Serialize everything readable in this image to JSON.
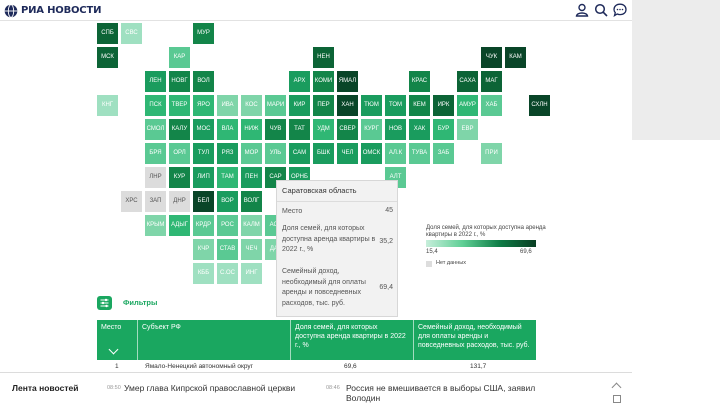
{
  "header": {
    "logo_text": "РИА НОВОСТИ",
    "icons": [
      "user-icon",
      "search-icon",
      "chat-icon"
    ]
  },
  "map": {
    "colors": {
      "c1": "#c4ecd8",
      "c2": "#9fe0c1",
      "c3": "#7fd5a9",
      "c4": "#5ac993",
      "c5": "#2fb774",
      "c6": "#1a9c5e",
      "c7": "#138549",
      "c8": "#0c6436",
      "c9": "#094528",
      "nodata": "#dcdcdc"
    },
    "tiles": [
      {
        "label": "СПБ",
        "c": "c8"
      },
      {
        "label": "СВС",
        "c": "c2"
      },
      {
        "label": "МУР",
        "c": "c7"
      },
      {
        "label": "МСК",
        "c": "c8"
      },
      {
        "label": "КАР",
        "c": "c4"
      },
      {
        "label": "НЕН",
        "c": "c8"
      },
      {
        "label": "ЧУК",
        "c": "c9"
      },
      {
        "label": "КАМ",
        "c": "c9"
      },
      {
        "label": "ЛЕН",
        "c": "c6"
      },
      {
        "label": "НОВГ",
        "c": "c7"
      },
      {
        "label": "ВОЛ",
        "c": "c7"
      },
      {
        "label": "АРХ",
        "c": "c6"
      },
      {
        "label": "КОМИ",
        "c": "c7"
      },
      {
        "label": "ЯМАЛ",
        "c": "c9"
      },
      {
        "label": "КРАС",
        "c": "c7"
      },
      {
        "label": "САХА",
        "c": "c8"
      },
      {
        "label": "МАГ",
        "c": "c8"
      },
      {
        "label": "КНГ",
        "c": "c2"
      },
      {
        "label": "ПСК",
        "c": "c5"
      },
      {
        "label": "ТВЕР",
        "c": "c5"
      },
      {
        "label": "ЯРО",
        "c": "c5"
      },
      {
        "label": "ИВА",
        "c": "c3"
      },
      {
        "label": "КОС",
        "c": "c3"
      },
      {
        "label": "МАРИ",
        "c": "c4"
      },
      {
        "label": "КИР",
        "c": "c6"
      },
      {
        "label": "ПЕР",
        "c": "c7"
      },
      {
        "label": "ХАН",
        "c": "c9"
      },
      {
        "label": "ТЮМ",
        "c": "c6"
      },
      {
        "label": "ТОМ",
        "c": "c6"
      },
      {
        "label": "КЕМ",
        "c": "c7"
      },
      {
        "label": "ИРК",
        "c": "c8"
      },
      {
        "label": "АМУР",
        "c": "c5"
      },
      {
        "label": "ХАБ",
        "c": "c4"
      },
      {
        "label": "СХЛН",
        "c": "c9"
      },
      {
        "label": "СМОЛ",
        "c": "c4"
      },
      {
        "label": "КАЛУ",
        "c": "c7"
      },
      {
        "label": "МОС",
        "c": "c6"
      },
      {
        "label": "ВЛА",
        "c": "c5"
      },
      {
        "label": "НИЖ",
        "c": "c5"
      },
      {
        "label": "ЧУВ",
        "c": "c7"
      },
      {
        "label": "ТАТ",
        "c": "c7"
      },
      {
        "label": "УДМ",
        "c": "c5"
      },
      {
        "label": "СВЕР",
        "c": "c7"
      },
      {
        "label": "КУРГ",
        "c": "c4"
      },
      {
        "label": "НОВ",
        "c": "c6"
      },
      {
        "label": "ХАК",
        "c": "c6"
      },
      {
        "label": "БУР",
        "c": "c5"
      },
      {
        "label": "ЕВР",
        "c": "c3"
      },
      {
        "label": "БРЯ",
        "c": "c4"
      },
      {
        "label": "ОРЛ",
        "c": "c4"
      },
      {
        "label": "ТУЛ",
        "c": "c6"
      },
      {
        "label": "РЯЗ",
        "c": "c6"
      },
      {
        "label": "МОР",
        "c": "c4"
      },
      {
        "label": "УЛЬ",
        "c": "c4"
      },
      {
        "label": "САМ",
        "c": "c6"
      },
      {
        "label": "БШК",
        "c": "c6"
      },
      {
        "label": "ЧЕЛ",
        "c": "c6"
      },
      {
        "label": "ОМСК",
        "c": "c6"
      },
      {
        "label": "АЛ.К",
        "c": "c4"
      },
      {
        "label": "ТУВА",
        "c": "c4"
      },
      {
        "label": "ЗАБ",
        "c": "c4"
      },
      {
        "label": "ПРИ",
        "c": "c3"
      },
      {
        "label": "ЛНР",
        "c": "nodata",
        "dark": true
      },
      {
        "label": "КУР",
        "c": "c7"
      },
      {
        "label": "ЛИП",
        "c": "c6"
      },
      {
        "label": "ТАМ",
        "c": "c5"
      },
      {
        "label": "ПЕН",
        "c": "c6"
      },
      {
        "label": "САР",
        "c": "c7"
      },
      {
        "label": "ОРНБ",
        "c": "c6"
      },
      {
        "label": "АЛТ",
        "c": "c4"
      },
      {
        "label": "ХРС",
        "c": "nodata",
        "dark": true
      },
      {
        "label": "ЗАП",
        "c": "nodata",
        "dark": true
      },
      {
        "label": "ДНР",
        "c": "nodata",
        "dark": true
      },
      {
        "label": "БЕЛ",
        "c": "c9"
      },
      {
        "label": "ВОР",
        "c": "c6"
      },
      {
        "label": "ВОЛГ",
        "c": "c7"
      },
      {
        "label": "КРЫМ",
        "c": "c3"
      },
      {
        "label": "АДЫГ",
        "c": "c5"
      },
      {
        "label": "КРДР",
        "c": "c4"
      },
      {
        "label": "РОС",
        "c": "c4"
      },
      {
        "label": "КАЛМ",
        "c": "c3"
      },
      {
        "label": "АСТ",
        "c": "c4"
      },
      {
        "label": "КЧР",
        "c": "c3"
      },
      {
        "label": "СТАВ",
        "c": "c4"
      },
      {
        "label": "ЧЕЧ",
        "c": "c3"
      },
      {
        "label": "ДАГ",
        "c": "c3"
      },
      {
        "label": "КББ",
        "c": "c2"
      },
      {
        "label": "С.ОС",
        "c": "c2"
      },
      {
        "label": "ИНГ",
        "c": "c2"
      }
    ]
  },
  "tooltip": {
    "title": "Саратовская область",
    "rows": [
      {
        "label": "Место",
        "value": "45"
      },
      {
        "label": "Доля семей, для которых доступна аренда квартиры в 2022 г., %",
        "value": "35,2"
      },
      {
        "label": "Семейный доход, необходимый для оплаты аренды и повседневных расходов, тыс. руб.",
        "value": "69,4"
      }
    ]
  },
  "legend": {
    "title": "Доля семей, для которых доступна аренда квартиры в 2022 г., %",
    "min": "15,4",
    "max": "69,6",
    "no_data": "Нет данных",
    "gradient": [
      "#c7eedb",
      "#5fcf95",
      "#0f7e47",
      "#093d22"
    ]
  },
  "filters": {
    "label": "Фильтры"
  },
  "table": {
    "headers": [
      "Место",
      "Субъект РФ",
      "Доля семей, для которых доступна аренда квартиры в 2022 г., %",
      "Семейный доход, необходимый для оплаты аренды и повседневных расходов, тыс. руб."
    ],
    "rows": [
      {
        "place": "1",
        "region": "Ямало-Ненецкий автономный округ",
        "share": "69,6",
        "income": "131,7"
      }
    ],
    "accent": "#1aa760"
  },
  "news": {
    "title": "Лента новостей",
    "items": [
      {
        "time": "08:50",
        "text": "Умер глава Кипрской православной церкви"
      },
      {
        "time": "08:46",
        "text": "Россия не вмешивается в выборы США, заявил Володин"
      }
    ]
  }
}
